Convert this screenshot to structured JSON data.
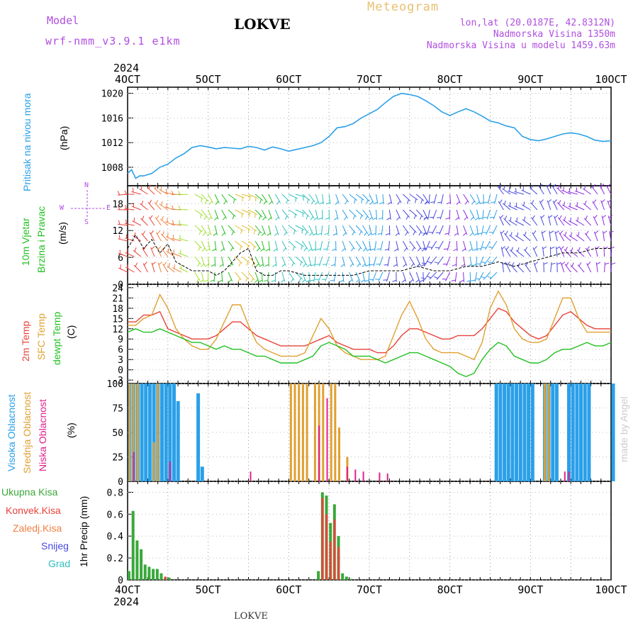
{
  "header": {
    "model_label": "Model",
    "model_name": "wrf-nmm_v3.9.1 e1km",
    "station": "LOKVE",
    "meteogram": "Meteogram",
    "lonlat": "lon,lat (20.0187E, 42.8312N)",
    "altitude": "Nadmorska Visina 1350m",
    "model_altitude": "Nadmorska Visina u modelu 1459.63m"
  },
  "colors": {
    "pressure": "#2aa0e8",
    "temp2m": "#e8423a",
    "sfc": "#e0a030",
    "dewpt": "#22c022",
    "high_cloud": "#2aa0e8",
    "mid_cloud": "#e0a030",
    "low_cloud": "#e0208a",
    "total_precip": "#3aa83a",
    "conv_precip": "#e8423a",
    "frz_precip": "#f08040",
    "snow": "#4848e0",
    "hail": "#30c0c0",
    "accent_purple": "#b04ee0"
  },
  "x_axis": {
    "year": "2024",
    "ticks": [
      "4OCT",
      "5OCT",
      "6OCT",
      "7OCT",
      "8OCT",
      "9OCT",
      "10OCT"
    ],
    "start_day": 4,
    "end_day": 10
  },
  "wind_compass": {
    "n": "N",
    "s": "S",
    "w": "W",
    "e": "E"
  },
  "watermark": "made by Angel",
  "footer_station": "LOKVE",
  "chart_data": [
    {
      "type": "line",
      "name": "pressure",
      "labels": [
        "Pritisak na nivou mora",
        "(hPa)"
      ],
      "ylim": [
        1005,
        1021
      ],
      "yticks": [
        1008,
        1012,
        1016,
        1020
      ],
      "x": [
        4.0,
        4.05,
        4.1,
        4.15,
        4.2,
        4.3,
        4.4,
        4.5,
        4.6,
        4.7,
        4.8,
        4.9,
        5.0,
        5.1,
        5.2,
        5.3,
        5.4,
        5.5,
        5.6,
        5.7,
        5.8,
        5.9,
        6.0,
        6.1,
        6.2,
        6.3,
        6.4,
        6.5,
        6.6,
        6.7,
        6.8,
        6.9,
        7.0,
        7.1,
        7.2,
        7.3,
        7.4,
        7.5,
        7.6,
        7.7,
        7.8,
        7.9,
        8.0,
        8.1,
        8.2,
        8.3,
        8.4,
        8.5,
        8.6,
        8.7,
        8.8,
        8.9,
        9.0,
        9.1,
        9.2,
        9.3,
        9.4,
        9.5,
        9.6,
        9.7,
        9.8,
        9.9,
        10.0
      ],
      "values": [
        1007.0,
        1007.6,
        1006.2,
        1006.6,
        1006.6,
        1007.0,
        1008.0,
        1008.5,
        1009.5,
        1010.2,
        1011.2,
        1011.5,
        1011.3,
        1011.0,
        1011.2,
        1011.1,
        1011.0,
        1011.4,
        1011.2,
        1010.8,
        1011.3,
        1011.0,
        1010.6,
        1010.9,
        1011.2,
        1011.5,
        1012.0,
        1013.0,
        1014.4,
        1014.6,
        1015.1,
        1016.0,
        1016.7,
        1017.4,
        1018.5,
        1019.5,
        1020.0,
        1019.8,
        1019.5,
        1018.8,
        1018.0,
        1017.0,
        1016.4,
        1017.0,
        1017.5,
        1017.0,
        1016.3,
        1015.5,
        1015.2,
        1014.7,
        1014.4,
        1013.0,
        1012.5,
        1012.3,
        1012.6,
        1013.0,
        1013.4,
        1013.6,
        1013.4,
        1013.0,
        1012.4,
        1012.2,
        1012.3
      ],
      "color_key": "pressure"
    },
    {
      "type": "barbs",
      "name": "wind",
      "labels": [
        "10m Vjetar",
        "Brzina i Pravac",
        "(m/s)"
      ],
      "ylim": [
        0,
        22
      ],
      "yticks": [
        0,
        6,
        12,
        18
      ],
      "speed_series": {
        "x": [
          4.0,
          4.1,
          4.2,
          4.3,
          4.4,
          4.5,
          4.6,
          4.7,
          4.8,
          4.9,
          5.0,
          5.1,
          5.2,
          5.3,
          5.4,
          5.5,
          5.6,
          5.7,
          5.8,
          5.9,
          6.0,
          6.2,
          6.4,
          6.6,
          6.8,
          7.0,
          7.2,
          7.4,
          7.6,
          7.8,
          8.0,
          8.2,
          8.4,
          8.6,
          8.8,
          9.0,
          9.2,
          9.4,
          9.6,
          9.8,
          10.0
        ],
        "values": [
          8,
          11,
          8,
          10,
          7,
          9,
          5,
          4,
          3,
          3,
          3,
          2,
          3,
          5,
          7,
          8,
          3,
          2,
          2,
          3,
          3,
          2,
          2,
          2,
          2,
          3,
          3,
          3,
          4,
          3,
          3,
          4,
          4,
          5,
          4,
          5,
          6,
          7,
          7,
          8,
          8
        ]
      }
    },
    {
      "type": "line",
      "name": "temperature",
      "labels": [
        "2m Temp",
        "SFC Temp",
        "dewpt Temp",
        "(C)"
      ],
      "ylim": [
        -4,
        25
      ],
      "yticks": [
        -3,
        0,
        3,
        6,
        9,
        12,
        15,
        18,
        21,
        24
      ],
      "x": [
        4.0,
        4.1,
        4.2,
        4.3,
        4.4,
        4.5,
        4.6,
        4.7,
        4.8,
        4.9,
        5.0,
        5.1,
        5.2,
        5.3,
        5.4,
        5.5,
        5.6,
        5.7,
        5.8,
        5.9,
        6.0,
        6.1,
        6.2,
        6.3,
        6.4,
        6.5,
        6.6,
        6.7,
        6.8,
        6.9,
        7.0,
        7.1,
        7.2,
        7.3,
        7.4,
        7.5,
        7.6,
        7.7,
        7.8,
        7.9,
        8.0,
        8.1,
        8.2,
        8.3,
        8.4,
        8.5,
        8.6,
        8.7,
        8.8,
        8.9,
        9.0,
        9.1,
        9.2,
        9.3,
        9.4,
        9.5,
        9.6,
        9.7,
        9.8,
        9.9,
        10.0
      ],
      "series": [
        {
          "name": "2m Temp",
          "color_key": "temp2m",
          "values": [
            14,
            14,
            16,
            16,
            17,
            12,
            11,
            10,
            9,
            9,
            9,
            10,
            12,
            14,
            14,
            12,
            10,
            9,
            8,
            7,
            7,
            7,
            7,
            8,
            9,
            10,
            8,
            7,
            6,
            6,
            6,
            5,
            5,
            7,
            10,
            12,
            12,
            11,
            10,
            9,
            9,
            10,
            10,
            10,
            12,
            15,
            18,
            17,
            14,
            12,
            10,
            9,
            10,
            13,
            16,
            17,
            15,
            13,
            12,
            12,
            12
          ]
        },
        {
          "name": "SFC Temp",
          "color_key": "sfc",
          "values": [
            13,
            13,
            15,
            16,
            22,
            18,
            12,
            9,
            7,
            6,
            6,
            9,
            14,
            19,
            19,
            13,
            8,
            6,
            5,
            4,
            4,
            4,
            5,
            10,
            15,
            12,
            7,
            5,
            4,
            3,
            3,
            3,
            4,
            10,
            16,
            20,
            15,
            9,
            6,
            5,
            5,
            5,
            4,
            3,
            8,
            18,
            23,
            19,
            12,
            9,
            8,
            8,
            9,
            15,
            21,
            21,
            15,
            11,
            11,
            11,
            11
          ]
        },
        {
          "name": "dewpt Temp",
          "color_key": "dewpt",
          "values": [
            11,
            12,
            11,
            11,
            12,
            11,
            10,
            9,
            8,
            8,
            7,
            6,
            7,
            6,
            6,
            5,
            4,
            4,
            3,
            2,
            2,
            2,
            3,
            4,
            7,
            8,
            7,
            6,
            4,
            4,
            4,
            3,
            2,
            3,
            4,
            5,
            5,
            4,
            3,
            2,
            1,
            -1,
            -2,
            -1,
            3,
            6,
            8,
            7,
            4,
            3,
            2,
            2,
            3,
            5,
            6,
            6,
            7,
            8,
            7,
            7,
            8
          ]
        }
      ]
    },
    {
      "type": "bar",
      "name": "cloud",
      "labels": [
        "Visoka Oblacnost",
        "Srednja Oblacnost",
        "Niska Oblacnost",
        "(%)"
      ],
      "ylim": [
        0,
        100
      ],
      "yticks": [
        0,
        25,
        50,
        75,
        100
      ],
      "series": [
        {
          "name": "Visoka Oblacnost",
          "color_key": "high_cloud",
          "x": [
            4.0,
            4.05,
            4.1,
            4.15,
            4.2,
            4.25,
            4.3,
            4.35,
            4.4,
            4.45,
            4.5,
            4.55,
            4.6,
            4.85,
            4.9,
            8.55,
            8.6,
            8.65,
            8.7,
            8.75,
            8.8,
            8.85,
            8.9,
            8.95,
            9.0,
            9.15,
            9.2,
            9.25,
            9.3,
            9.45,
            9.5,
            9.55,
            9.6,
            9.65,
            9.7,
            10.0
          ],
          "values": [
            100,
            100,
            100,
            100,
            100,
            100,
            100,
            100,
            100,
            100,
            100,
            100,
            82,
            90,
            15,
            100,
            100,
            100,
            100,
            100,
            100,
            100,
            100,
            100,
            100,
            100,
            100,
            100,
            100,
            100,
            100,
            100,
            100,
            100,
            100,
            100
          ]
        },
        {
          "name": "Srednja Oblacnost",
          "color_key": "mid_cloud",
          "x": [
            4.0,
            4.05,
            4.1,
            4.3,
            4.35,
            6.0,
            6.05,
            6.1,
            6.15,
            6.2,
            6.3,
            6.35,
            6.4,
            6.5,
            6.55,
            6.6,
            6.7,
            9.15,
            9.2
          ],
          "values": [
            100,
            100,
            100,
            40,
            100,
            100,
            100,
            100,
            100,
            100,
            100,
            100,
            100,
            100,
            100,
            55,
            25,
            100,
            100
          ]
        },
        {
          "name": "Niska Oblacnost",
          "color_key": "low_cloud",
          "x": [
            4.05,
            4.5,
            5.5,
            6.35,
            6.45,
            6.7,
            6.8,
            6.9,
            7.1,
            7.2,
            9.4,
            9.45
          ],
          "values": [
            30,
            20,
            10,
            57,
            85,
            15,
            12,
            10,
            9,
            8,
            10,
            10
          ]
        }
      ]
    },
    {
      "type": "bar",
      "name": "precipitation",
      "labels": [
        "Ukupna Kisa",
        "Konvek.Kisa",
        "Zaledj.Kisa",
        "Snijeg",
        "Grad",
        "1hr Precip (mm)"
      ],
      "ylim": [
        0,
        0.9
      ],
      "yticks": [
        0,
        0.2,
        0.4,
        0.6,
        0.8
      ],
      "series": [
        {
          "name": "Ukupna Kisa",
          "color_key": "total_precip",
          "x": [
            4.0,
            4.05,
            4.1,
            4.15,
            4.2,
            4.25,
            4.3,
            4.35,
            4.4,
            4.45,
            4.5,
            6.35,
            6.4,
            6.45,
            6.5,
            6.55,
            6.6,
            6.65,
            6.7,
            6.75
          ],
          "values": [
            0.08,
            0.63,
            0.36,
            0.28,
            0.14,
            0.12,
            0.1,
            0.1,
            0.06,
            0.02,
            0.02,
            0.08,
            0.8,
            0.77,
            0.52,
            0.69,
            0.4,
            0.06,
            0.03,
            0.01
          ]
        },
        {
          "name": "Konvek.Kisa",
          "color_key": "conv_precip",
          "x": [
            4.45,
            6.4,
            6.45,
            6.5,
            6.55,
            6.6
          ],
          "values": [
            0.03,
            0.75,
            0.6,
            0.35,
            0.55,
            0.3
          ]
        }
      ]
    }
  ]
}
